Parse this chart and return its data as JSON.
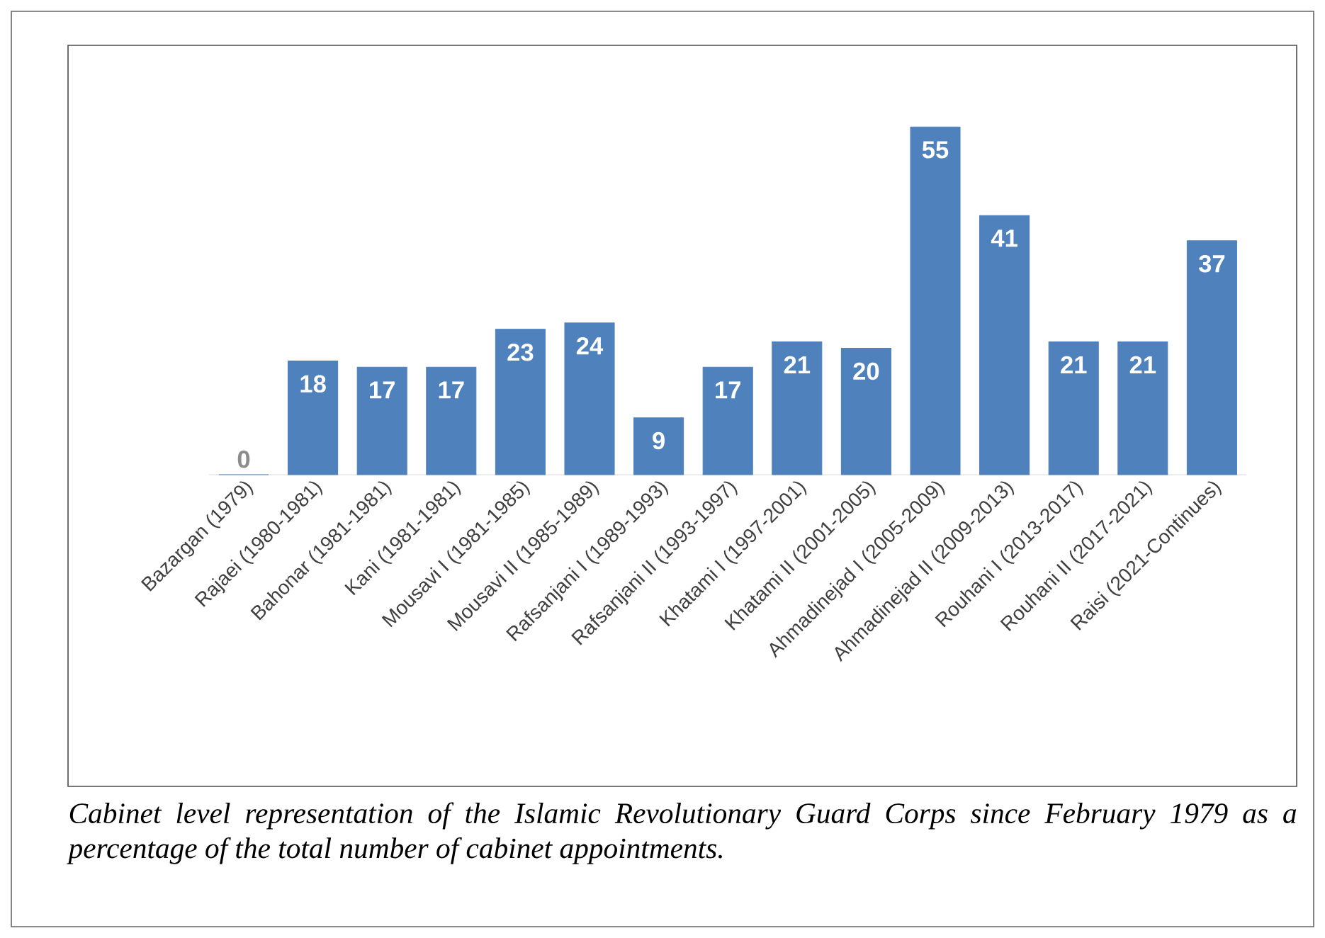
{
  "chart_data": {
    "type": "bar",
    "categories": [
      "Bazargan (1979)",
      "Rajaei (1980-1981)",
      "Bahonar (1981-1981)",
      "Kani (1981-1981)",
      "Mousavi I (1981-1985)",
      "Mousavi II (1985-1989)",
      "Rafsanjani I (1989-1993)",
      "Rafsanjani II (1993-1997)",
      "Khatami I (1997-2001)",
      "Khatami II (2001-2005)",
      "Ahmadinejad I (2005-2009)",
      "Ahmadinejad II (2009-2013)",
      "Rouhani I (2013-2017)",
      "Rouhani II (2017-2021)",
      "Raisi (2021-Continues)"
    ],
    "values": [
      0,
      18,
      17,
      17,
      23,
      24,
      9,
      17,
      21,
      20,
      55,
      41,
      21,
      21,
      37
    ],
    "color": "#4f81bd",
    "data_labels": true,
    "annotations": [
      "Cabinet level representation of the Islamic Revolutionary Guard Corps since February 1979 as a percentage of the total number of cabinet appointments."
    ]
  }
}
